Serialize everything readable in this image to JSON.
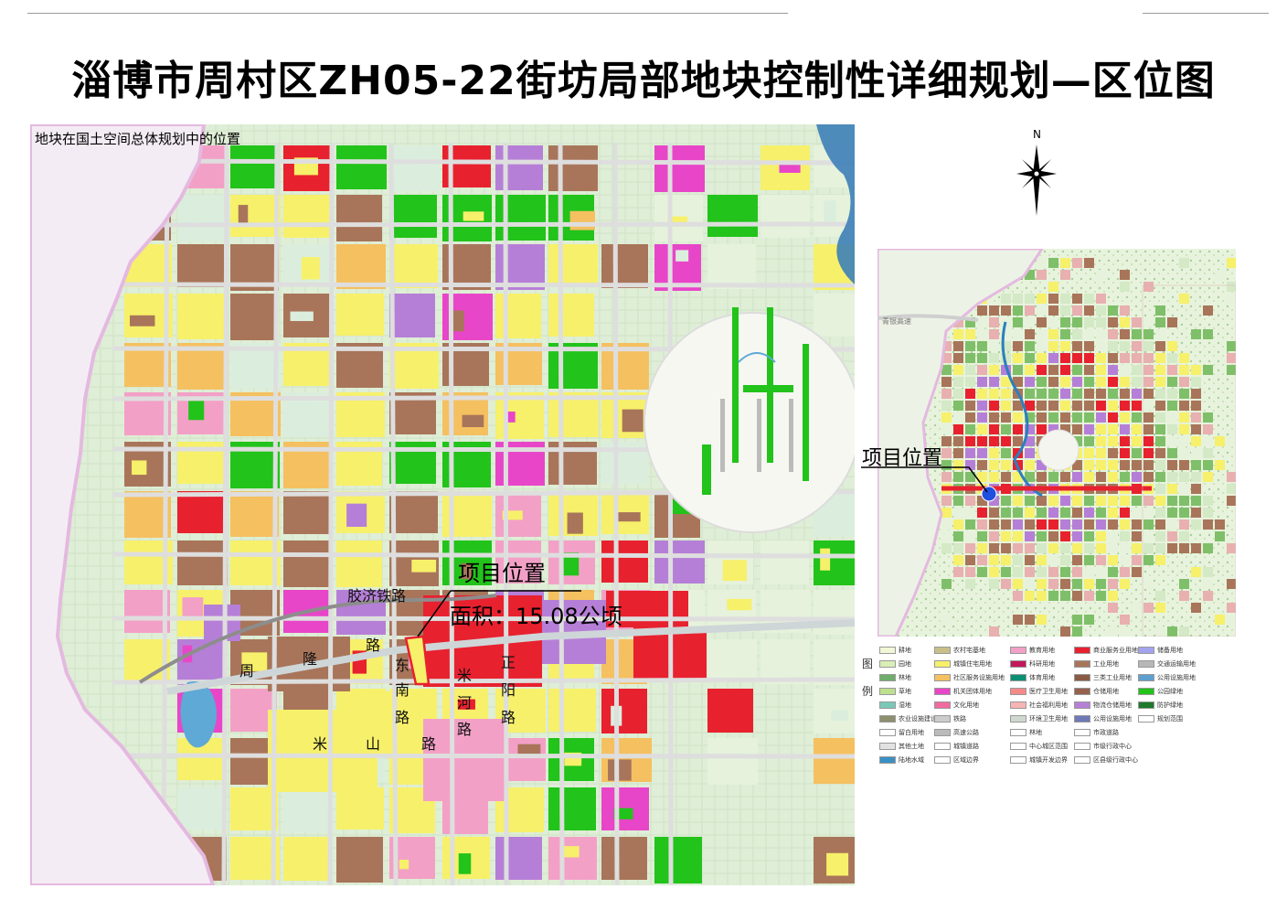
{
  "title": "淄博市周村区ZH05-22街坊局部地块控制性详细规划—区位图",
  "main_map": {
    "caption": "地块在国土空间总体规划中的位置",
    "project_label": "项目位置",
    "area_label": "面积：15.08公顷",
    "roads": {
      "jiaoji": "胶济铁路",
      "zhoulong": [
        "周",
        "隆",
        "路"
      ],
      "dongnan": [
        "东",
        "南",
        "路"
      ],
      "mishan": [
        "米",
        "山",
        "路"
      ],
      "mihe": [
        "米",
        "河",
        "路"
      ],
      "zhengyang": [
        "正",
        "阳",
        "路"
      ]
    }
  },
  "side_map": {
    "north_label": "N",
    "project_label": "项目位置",
    "highway_label": "青银高速"
  },
  "legend": {
    "title_chars": [
      "图",
      "例"
    ],
    "columns": [
      [
        {
          "label": "耕地",
          "color": "#f2f7d6"
        },
        {
          "label": "园地",
          "color": "#d8efb6"
        },
        {
          "label": "林地",
          "color": "#6fae6a"
        },
        {
          "label": "草地",
          "color": "#bde08f"
        },
        {
          "label": "湿地",
          "color": "#7ac9b8"
        },
        {
          "label": "农业设施建设用地",
          "color": "#8e8f6e"
        },
        {
          "label": "留白用地",
          "color": "#ffffff"
        },
        {
          "label": "其他土地",
          "color": "#e2e2e2"
        },
        {
          "label": "陆地水域",
          "color": "#3a8fc4"
        }
      ],
      [
        {
          "label": "农村宅基地",
          "color": "#c9c089"
        },
        {
          "label": "城镇住宅用地",
          "color": "#f7f06a"
        },
        {
          "label": "社区服务设施用地",
          "color": "#f5c060"
        },
        {
          "label": "机关团体用地",
          "color": "#e846c8"
        },
        {
          "label": "文化用地",
          "color": "#f06aa0"
        },
        {
          "label": "铁路",
          "color": "#cccccc"
        },
        {
          "label": "高速公路",
          "color": "#bbbbbb"
        },
        {
          "label": "城镇道路",
          "color": "#ffffff"
        },
        {
          "label": "区域边界",
          "color": "#ffffff"
        }
      ],
      [
        {
          "label": "教育用地",
          "color": "#f3a0c7"
        },
        {
          "label": "科研用地",
          "color": "#c2185b"
        },
        {
          "label": "体育用地",
          "color": "#0b8f74"
        },
        {
          "label": "医疗卫生用地",
          "color": "#f58a88"
        },
        {
          "label": "社会福利用地",
          "color": "#f7b4b4"
        },
        {
          "label": "环境卫生用地",
          "color": "#cfd8cf"
        },
        {
          "label": "林地",
          "color": "#ffffff"
        },
        {
          "label": "中心城区范围",
          "color": "#ffffff"
        },
        {
          "label": "城镇开发边界",
          "color": "#ffffff"
        }
      ],
      [
        {
          "label": "商业服务业用地",
          "color": "#e8212f"
        },
        {
          "label": "工业用地",
          "color": "#a8755a"
        },
        {
          "label": "三类工业用地",
          "color": "#8b5a44"
        },
        {
          "label": "仓储用地",
          "color": "#95614d"
        },
        {
          "label": "物流仓储用地",
          "color": "#b67fd7"
        },
        {
          "label": "公用设施用地",
          "color": "#6f7ab6"
        },
        {
          "label": "市政道路",
          "color": "#ffffff"
        },
        {
          "label": "市级行政中心",
          "color": "#ffffff"
        },
        {
          "label": "区县级行政中心",
          "color": "#ffffff"
        }
      ],
      [
        {
          "label": "储备用地",
          "color": "#a3a3f0"
        },
        {
          "label": "交通运输用地",
          "color": "#b7b7b7"
        },
        {
          "label": "公用设施用地",
          "color": "#5da0d0"
        },
        {
          "label": "公园绿地",
          "color": "#22c31a"
        },
        {
          "label": "防护绿地",
          "color": "#1c7a2a"
        },
        {
          "label": "规划范围",
          "color": "#ffffff"
        }
      ]
    ]
  },
  "colors": {
    "residential": "#f7f06a",
    "commercial": "#e8212f",
    "industrial": "#a8755a",
    "farmland": "#dbeedd",
    "park": "#22c31a",
    "education": "#f3a0c7",
    "admin": "#e846c8",
    "storage": "#b67fd7",
    "road": "#dedede",
    "water": "#5ea9d6",
    "project_marker": "#1f4fe0"
  }
}
